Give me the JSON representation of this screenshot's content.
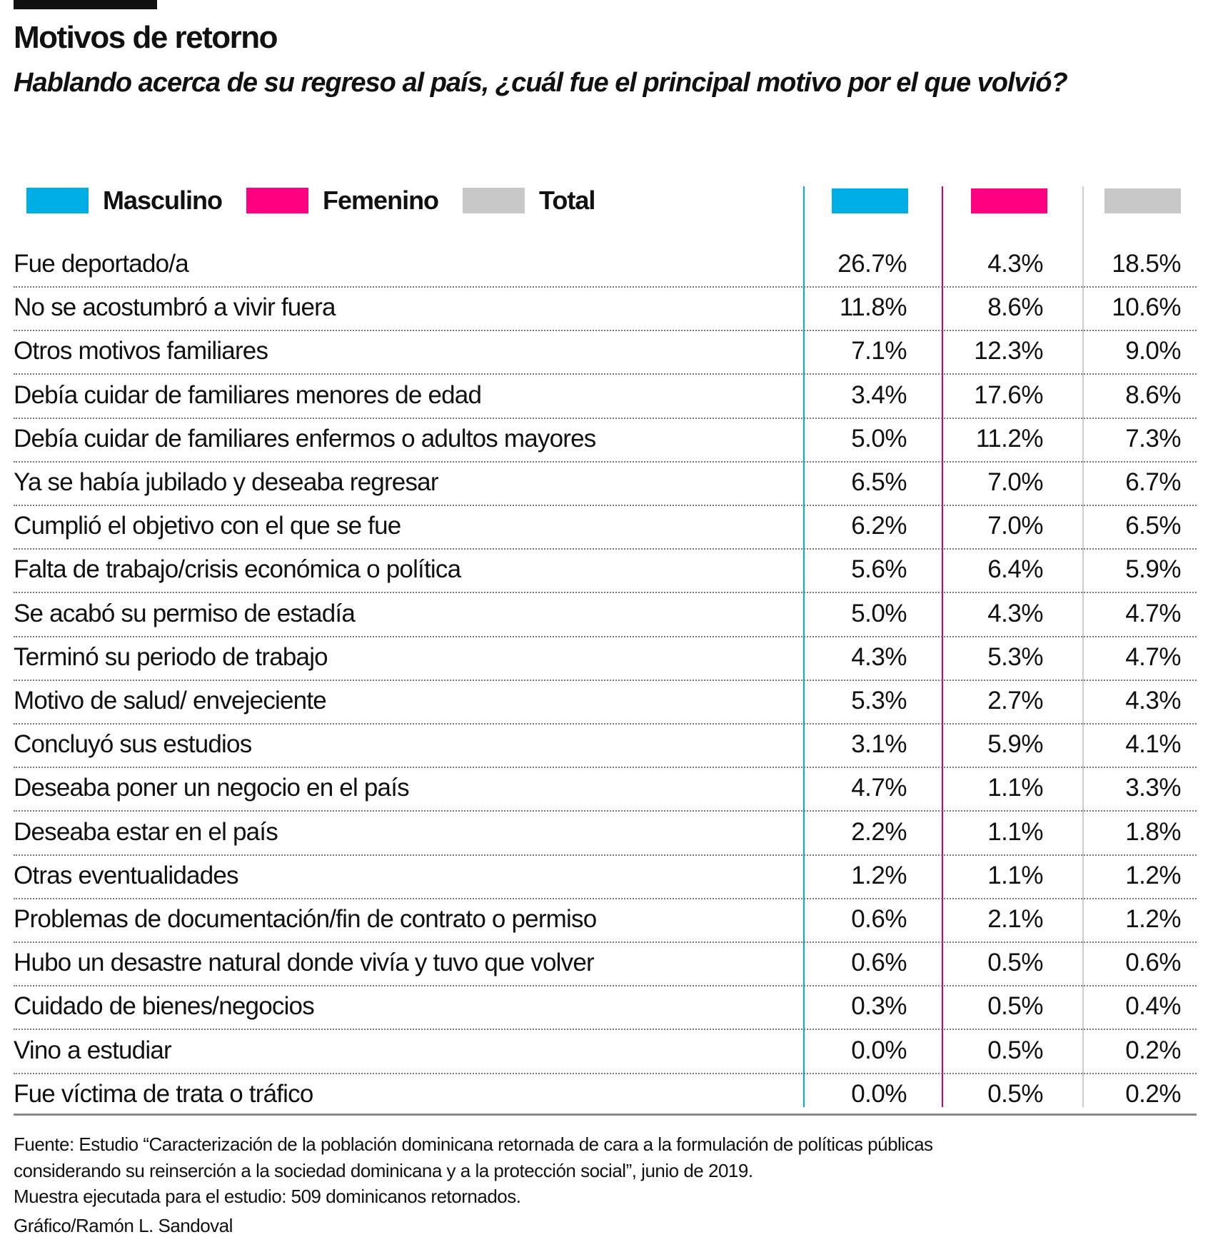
{
  "title": "Motivos de retorno",
  "subtitle": "Hablando acerca de su regreso al país, ¿cuál fue el principal motivo por el que volvió?",
  "colors": {
    "masculino": "#00AEE6",
    "femenino": "#FF0080",
    "total": "#C8C8C8"
  },
  "chart_data": {
    "type": "table",
    "legend": [
      "Masculino",
      "Femenino",
      "Total"
    ],
    "columns": [
      "Masculino",
      "Femenino",
      "Total"
    ],
    "rows": [
      {
        "label": "Fue deportado/a",
        "values": [
          "26.7%",
          "4.3%",
          "18.5%"
        ]
      },
      {
        "label": "No se acostumbró a vivir fuera",
        "values": [
          "11.8%",
          "8.6%",
          "10.6%"
        ]
      },
      {
        "label": "Otros motivos familiares",
        "values": [
          "7.1%",
          "12.3%",
          "9.0%"
        ]
      },
      {
        "label": "Debía cuidar de familiares menores de edad",
        "values": [
          "3.4%",
          "17.6%",
          "8.6%"
        ]
      },
      {
        "label": "Debía cuidar de familiares  enfermos o adultos mayores",
        "values": [
          "5.0%",
          "11.2%",
          "7.3%"
        ]
      },
      {
        "label": "Ya se había jubilado y deseaba regresar",
        "values": [
          "6.5%",
          "7.0%",
          "6.7%"
        ]
      },
      {
        "label": "Cumplió el objetivo con el que se fue",
        "values": [
          "6.2%",
          "7.0%",
          "6.5%"
        ]
      },
      {
        "label": "Falta de trabajo/crisis económica o política",
        "values": [
          "5.6%",
          "6.4%",
          "5.9%"
        ]
      },
      {
        "label": "Se acabó su permiso de estadía",
        "values": [
          "5.0%",
          "4.3%",
          "4.7%"
        ]
      },
      {
        "label": "Terminó su periodo de trabajo",
        "values": [
          "4.3%",
          "5.3%",
          "4.7%"
        ]
      },
      {
        "label": "Motivo de salud/ envejeciente",
        "values": [
          "5.3%",
          "2.7%",
          "4.3%"
        ]
      },
      {
        "label": "Concluyó sus estudios",
        "values": [
          "3.1%",
          "5.9%",
          "4.1%"
        ]
      },
      {
        "label": "Deseaba poner un negocio en el país",
        "values": [
          "4.7%",
          "1.1%",
          "3.3%"
        ]
      },
      {
        "label": "Deseaba estar en el país",
        "values": [
          "2.2%",
          "1.1%",
          "1.8%"
        ]
      },
      {
        "label": "Otras eventualidades",
        "values": [
          "1.2%",
          "1.1%",
          "1.2%"
        ]
      },
      {
        "label": "Problemas de documentación/fin de contrato o permiso",
        "values": [
          "0.6%",
          "2.1%",
          "1.2%"
        ]
      },
      {
        "label": "Hubo un desastre natural donde vivía y tuvo que volver",
        "values": [
          "0.6%",
          "0.5%",
          "0.6%"
        ]
      },
      {
        "label": "Cuidado de bienes/negocios",
        "values": [
          "0.3%",
          "0.5%",
          "0.4%"
        ]
      },
      {
        "label": "Vino a estudiar",
        "values": [
          "0.0%",
          "0.5%",
          "0.2%"
        ]
      },
      {
        "label": "Fue víctima de trata o tráfico",
        "values": [
          "0.0%",
          "0.5%",
          "0.2%"
        ]
      }
    ]
  },
  "footer": {
    "source_line1": "Fuente: Estudio “Caracterización de la población dominicana retornada de cara a la formulación de políticas públicas",
    "source_line2": "considerando su reinserción a la sociedad dominicana y a la protección social”, junio de 2019.",
    "sample": "Muestra ejecutada para el estudio: 509 dominicanos retornados.",
    "credit": "Gráfico/Ramón L. Sandoval"
  }
}
